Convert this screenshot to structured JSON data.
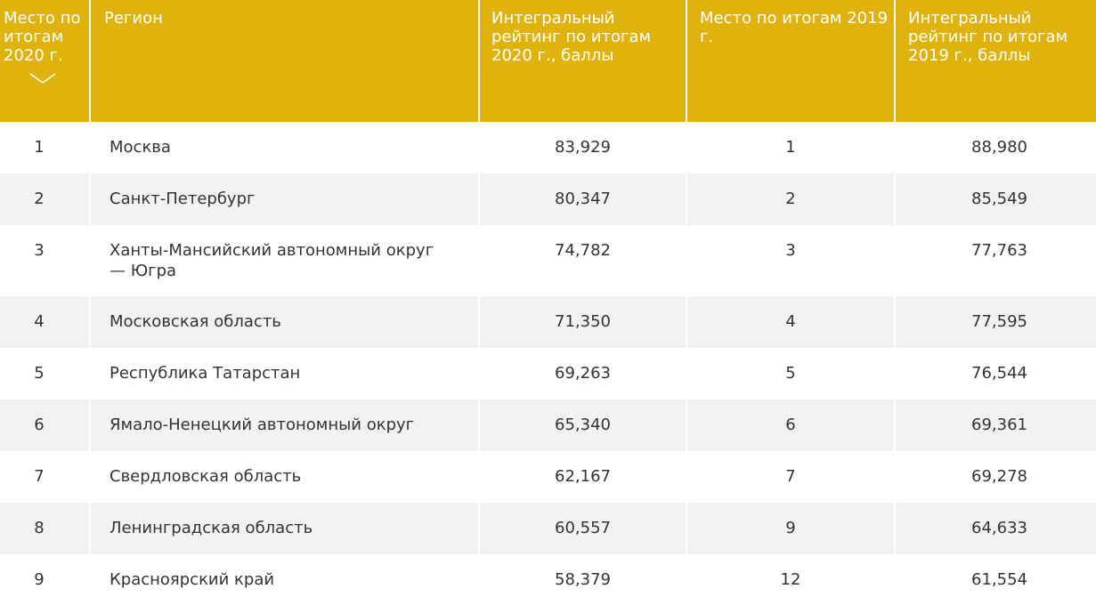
{
  "header": {
    "place_2020": "Место по итогам 2020 г.",
    "region": "Регион",
    "rating_2020": "Интегральный рейтинг по итогам 2020 г., баллы",
    "place_2019": "Место по итогам 2019 г.",
    "rating_2019": "Интегральный рейтинг по итогам 2019 г., баллы",
    "sort_icon": "chevron-down-icon"
  },
  "rows": [
    {
      "place_2020": "1",
      "region": "Москва",
      "rating_2020": "83,929",
      "place_2019": "1",
      "rating_2019": "88,980"
    },
    {
      "place_2020": "2",
      "region": "Санкт-Петербург",
      "rating_2020": "80,347",
      "place_2019": "2",
      "rating_2019": "85,549"
    },
    {
      "place_2020": "3",
      "region": "Ханты-Мансийский автономный округ — Югра",
      "rating_2020": "74,782",
      "place_2019": "3",
      "rating_2019": "77,763"
    },
    {
      "place_2020": "4",
      "region": "Московская область",
      "rating_2020": "71,350",
      "place_2019": "4",
      "rating_2019": "77,595"
    },
    {
      "place_2020": "5",
      "region": "Республика Татарстан",
      "rating_2020": "69,263",
      "place_2019": "5",
      "rating_2019": "76,544"
    },
    {
      "place_2020": "6",
      "region": "Ямало-Ненецкий автономный округ",
      "rating_2020": "65,340",
      "place_2019": "6",
      "rating_2019": "69,361"
    },
    {
      "place_2020": "7",
      "region": "Свердловская область",
      "rating_2020": "62,167",
      "place_2019": "7",
      "rating_2019": "69,278"
    },
    {
      "place_2020": "8",
      "region": "Ленинградская область",
      "rating_2020": "60,557",
      "place_2019": "9",
      "rating_2019": "64,633"
    },
    {
      "place_2020": "9",
      "region": "Красноярский край",
      "rating_2020": "58,379",
      "place_2019": "12",
      "rating_2019": "61,554"
    }
  ],
  "colors": {
    "header_bg": "#e0b30c",
    "header_text": "#ffffff",
    "row_alt_bg": "#f2f2f2",
    "body_text": "#333333"
  }
}
